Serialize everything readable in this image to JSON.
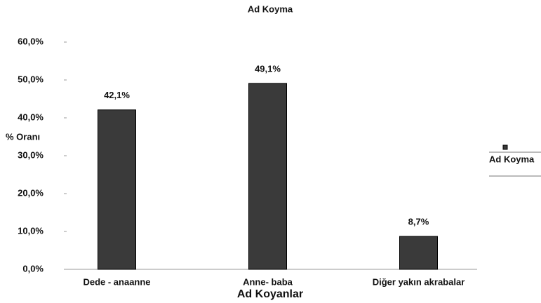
{
  "chart_data": {
    "type": "bar",
    "title": "Ad Koyma",
    "categories": [
      "Dede - anaanne",
      "Anne- baba",
      "Diğer yakın akrabalar"
    ],
    "series": [
      {
        "name": "Ad Koyma",
        "color": "#3a3a3a",
        "values": [
          42.1,
          49.1,
          8.7
        ],
        "value_labels": [
          "42,1%",
          "49,1%",
          "8,7%"
        ]
      }
    ],
    "y_label": "% Oranı",
    "x_label": "Ad Koyanlar",
    "ylim": [
      0,
      60
    ],
    "yticks": [
      {
        "value": 0,
        "label": "0,0%"
      },
      {
        "value": 10,
        "label": "10,0%"
      },
      {
        "value": 20,
        "label": "20,0%"
      },
      {
        "value": 30,
        "label": "30,0%"
      },
      {
        "value": 40,
        "label": "40,0%"
      },
      {
        "value": 50,
        "label": "50,0%"
      },
      {
        "value": 60,
        "label": "60,0%"
      }
    ],
    "grid": false,
    "legend": "right"
  }
}
